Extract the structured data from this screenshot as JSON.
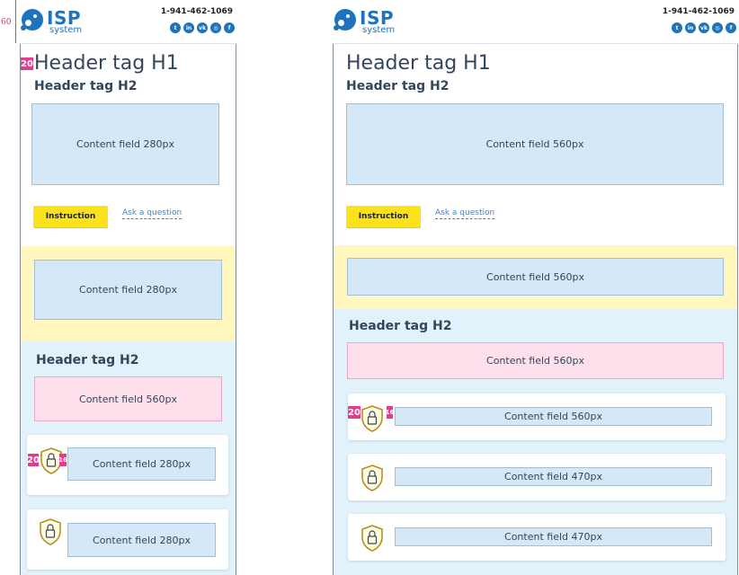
{
  "annotations": {
    "header_height": "60",
    "spacing_20": "20",
    "spacing_16": "16"
  },
  "header": {
    "logo_main": "ISP",
    "logo_sub": "system",
    "phone": "1-941-462-1069",
    "socials": [
      "twitter-icon",
      "linkedin-icon",
      "vk-icon",
      "instagram-icon",
      "facebook-icon"
    ],
    "social_glyphs": [
      "t",
      "in",
      "vk",
      "◎",
      "f"
    ]
  },
  "mobile": {
    "h1": "Header tag H1",
    "h2": "Header tag H2",
    "field_top": "Content field 280px",
    "btn_label": "Instruction",
    "link_label": "Ask a question",
    "yellow_field": "Content field 280px",
    "h2_blue": "Header tag H2",
    "pink_field": "Content field 560px",
    "card1_field": "Content field 280px",
    "card2_field": "Content field 280px"
  },
  "desktop": {
    "h1": "Header tag H1",
    "h2": "Header tag H2",
    "field_top": "Content field 560px",
    "btn_label": "Instruction",
    "link_label": "Ask a question",
    "yellow_field": "Content field 560px",
    "h2_blue": "Header tag H2",
    "pink_field": "Content field 560px",
    "card1_field": "Content field 560px",
    "card2_field": "Content field 470px",
    "card3_field": "Content field 470px"
  },
  "colors": {
    "brand": "#1e73be",
    "button": "#fbe21b",
    "yellow_band": "#fff7bd",
    "blue_band": "#e1f2fb",
    "field": "#d5e8f8",
    "pink_field": "#fde0ec",
    "annotation": "#e23d8d"
  }
}
